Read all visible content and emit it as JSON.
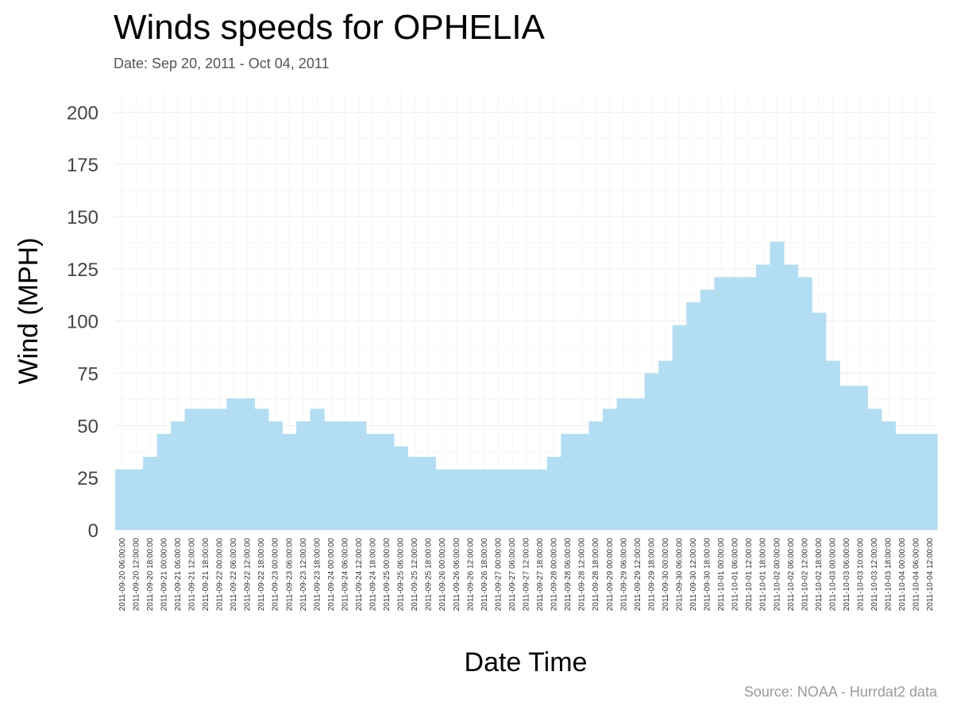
{
  "chart_data": {
    "type": "bar",
    "title": "Winds speeds for OPHELIA",
    "subtitle": "Date:  Sep 20, 2011 - Oct 04, 2011",
    "xlabel": "Date Time",
    "ylabel": "Wind (MPH)",
    "caption": "Source: NOAA - Hurrdat2 data",
    "ylim": [
      0,
      210
    ],
    "yticks": [
      0,
      25,
      50,
      75,
      100,
      125,
      150,
      175,
      200
    ],
    "grid": true,
    "colors": {
      "bar": "#b3ddf2",
      "grid": "#ececec"
    },
    "categories": [
      "2011-09-20 06:00:00",
      "2011-09-20 12:00:00",
      "2011-09-20 18:00:00",
      "2011-09-21 00:00:00",
      "2011-09-21 06:00:00",
      "2011-09-21 12:00:00",
      "2011-09-21 18:00:00",
      "2011-09-22 00:00:00",
      "2011-09-22 06:00:00",
      "2011-09-22 12:00:00",
      "2011-09-22 18:00:00",
      "2011-09-23 00:00:00",
      "2011-09-23 06:00:00",
      "2011-09-23 12:00:00",
      "2011-09-23 18:00:00",
      "2011-09-24 00:00:00",
      "2011-09-24 06:00:00",
      "2011-09-24 12:00:00",
      "2011-09-24 18:00:00",
      "2011-09-25 00:00:00",
      "2011-09-25 06:00:00",
      "2011-09-25 12:00:00",
      "2011-09-25 18:00:00",
      "2011-09-26 00:00:00",
      "2011-09-26 06:00:00",
      "2011-09-26 12:00:00",
      "2011-09-26 18:00:00",
      "2011-09-27 00:00:00",
      "2011-09-27 06:00:00",
      "2011-09-27 12:00:00",
      "2011-09-27 18:00:00",
      "2011-09-28 00:00:00",
      "2011-09-28 06:00:00",
      "2011-09-28 12:00:00",
      "2011-09-28 18:00:00",
      "2011-09-29 00:00:00",
      "2011-09-29 06:00:00",
      "2011-09-29 12:00:00",
      "2011-09-29 18:00:00",
      "2011-09-30 00:00:00",
      "2011-09-30 06:00:00",
      "2011-09-30 12:00:00",
      "2011-09-30 18:00:00",
      "2011-10-01 00:00:00",
      "2011-10-01 06:00:00",
      "2011-10-01 12:00:00",
      "2011-10-01 18:00:00",
      "2011-10-02 00:00:00",
      "2011-10-02 06:00:00",
      "2011-10-02 12:00:00",
      "2011-10-02 18:00:00",
      "2011-10-03 00:00:00",
      "2011-10-03 06:00:00",
      "2011-10-03 10:00:00",
      "2011-10-03 12:00:00",
      "2011-10-03 18:00:00",
      "2011-10-04 00:00:00",
      "2011-10-04 06:00:00",
      "2011-10-04 12:00:00"
    ],
    "values": [
      29,
      29,
      35,
      46,
      52,
      58,
      58,
      58,
      63,
      63,
      58,
      52,
      46,
      52,
      58,
      52,
      52,
      52,
      46,
      46,
      40,
      35,
      35,
      29,
      29,
      29,
      29,
      29,
      29,
      29,
      29,
      35,
      46,
      46,
      52,
      58,
      63,
      63,
      75,
      81,
      98,
      109,
      115,
      121,
      121,
      121,
      127,
      138,
      127,
      121,
      104,
      81,
      69,
      69,
      58,
      52,
      46,
      46,
      46
    ]
  }
}
